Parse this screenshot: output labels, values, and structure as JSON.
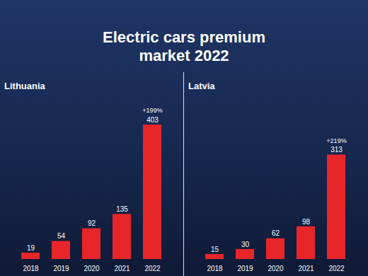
{
  "title": "Electric cars premium market 2022",
  "chart_data": [
    {
      "type": "bar",
      "title": "Lithuania",
      "categories": [
        "2018",
        "2019",
        "2020",
        "2021",
        "2022"
      ],
      "values": [
        19,
        54,
        92,
        135,
        403
      ],
      "color": "#e8262a",
      "ylim": [
        0,
        420
      ],
      "data_labels": true,
      "tick_labels": "x",
      "annotations": [
        {
          "x": "2022",
          "text": "+199%"
        }
      ]
    },
    {
      "type": "bar",
      "title": "Latvia",
      "categories": [
        "2018",
        "2019",
        "2020",
        "2021",
        "2022"
      ],
      "values": [
        15,
        30,
        62,
        98,
        313
      ],
      "color": "#e8262a",
      "ylim": [
        0,
        420
      ],
      "data_labels": true,
      "tick_labels": "x",
      "annotations": [
        {
          "x": "2022",
          "text": "+219%"
        }
      ]
    }
  ]
}
